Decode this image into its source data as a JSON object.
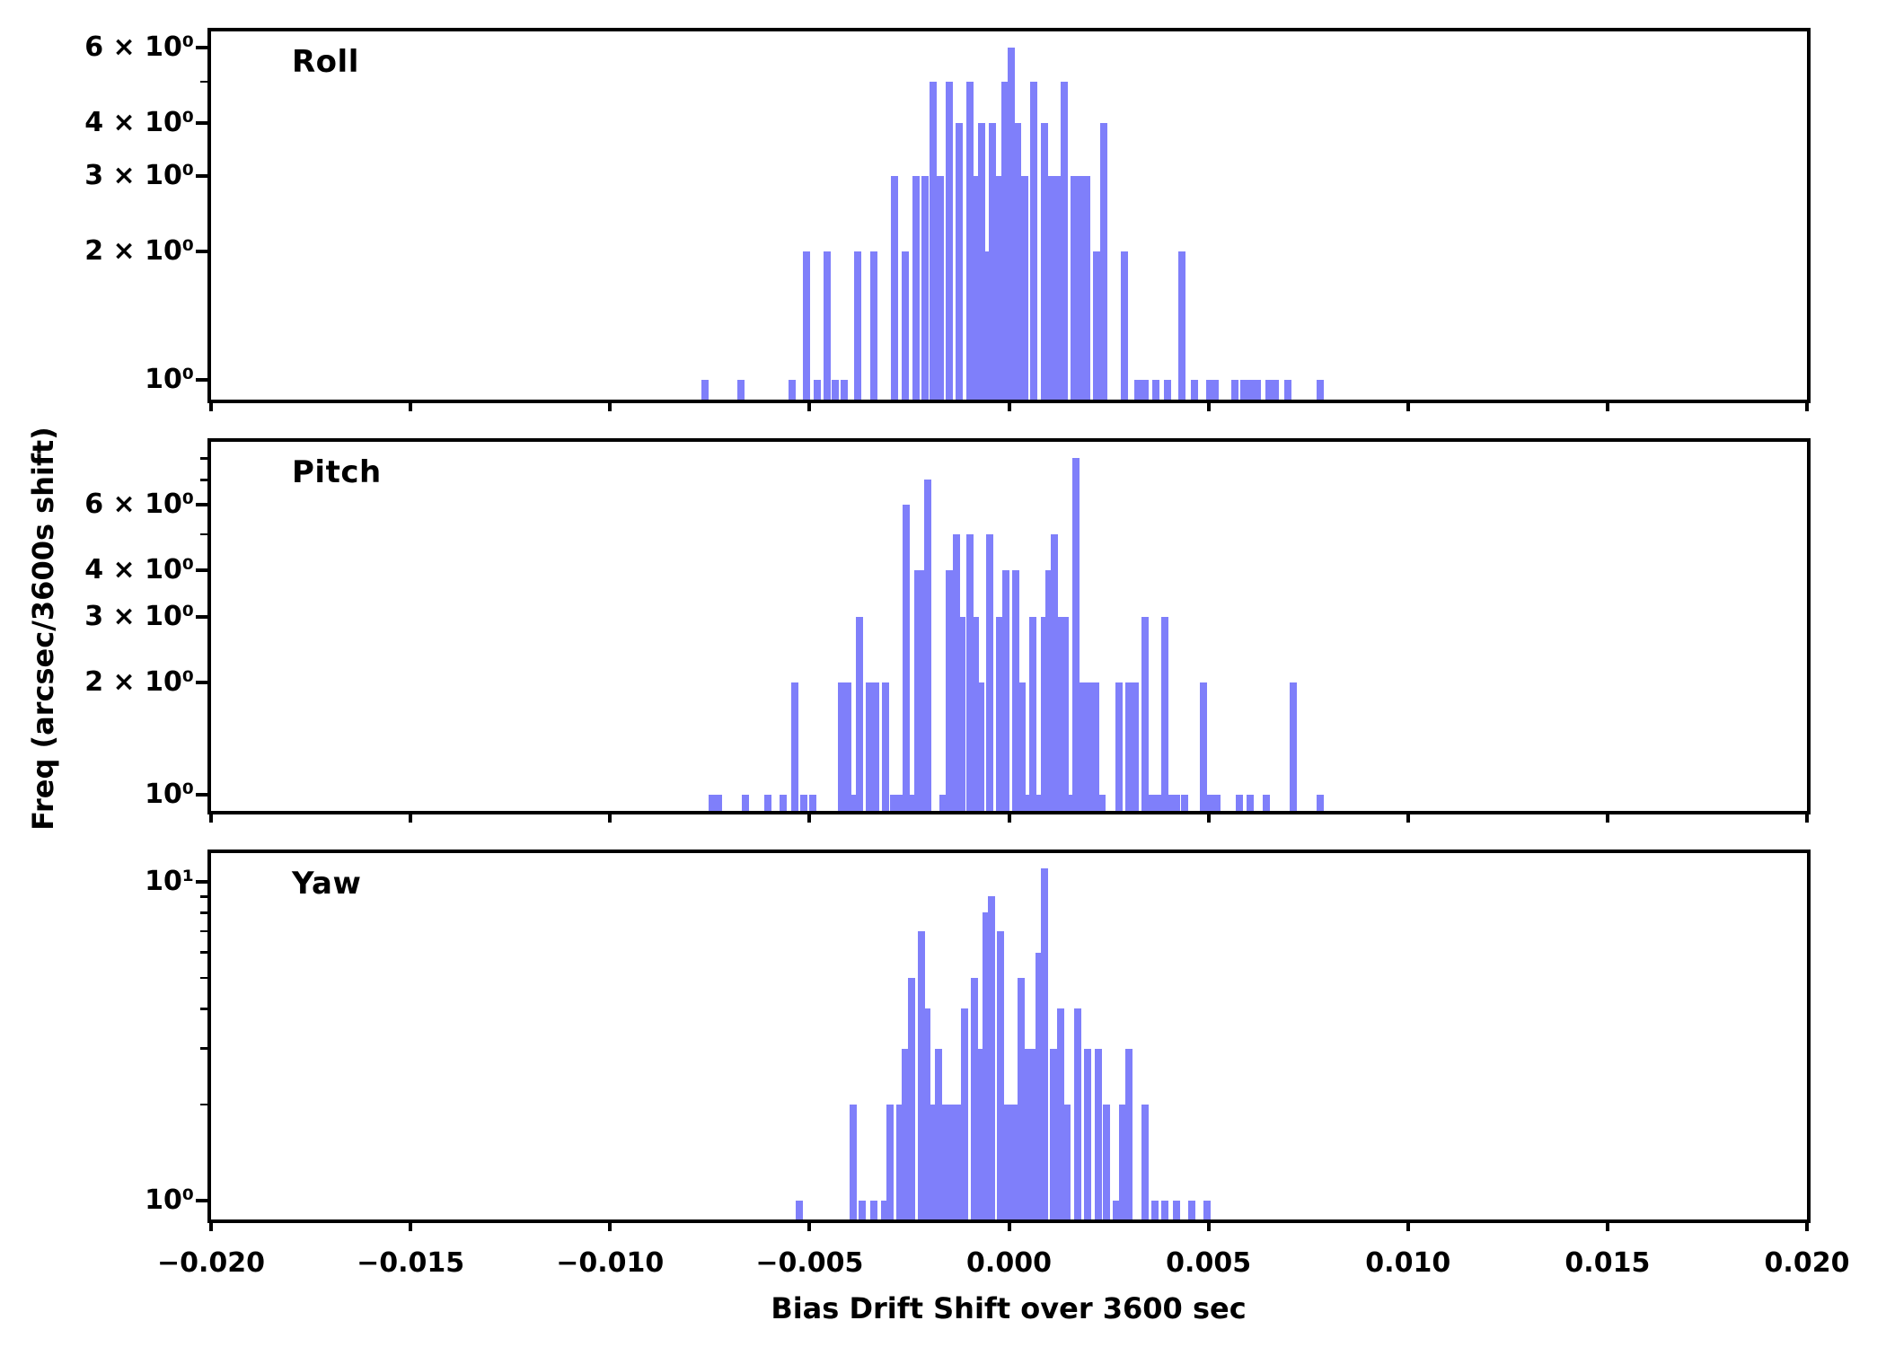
{
  "figure": {
    "xlabel": "Bias Drift Shift over 3600 sec",
    "ylabel": "Freq (arcsec/3600s shift)",
    "bar_color": "#7f7ffa",
    "x_ticks": [
      {
        "value": -0.02,
        "label": "−0.020"
      },
      {
        "value": -0.015,
        "label": "−0.015"
      },
      {
        "value": -0.01,
        "label": "−0.010"
      },
      {
        "value": -0.005,
        "label": "−0.005"
      },
      {
        "value": 0.0,
        "label": "0.000"
      },
      {
        "value": 0.005,
        "label": "0.005"
      },
      {
        "value": 0.01,
        "label": "0.010"
      },
      {
        "value": 0.015,
        "label": "0.015"
      },
      {
        "value": 0.02,
        "label": "0.020"
      }
    ]
  },
  "chart_data": [
    {
      "type": "bar",
      "subtype": "histogram",
      "title": "Roll",
      "yscale": "log",
      "xlim": [
        -0.02,
        0.02
      ],
      "ylim": [
        0.9,
        6.6
      ],
      "bin_width": 0.00018,
      "grid": false,
      "y_ticks_major": [
        {
          "value": 1,
          "label": "10⁰"
        },
        {
          "value": 2,
          "label": "2 × 10⁰"
        },
        {
          "value": 3,
          "label": "3 × 10⁰"
        },
        {
          "value": 4,
          "label": "4 × 10⁰"
        },
        {
          "value": 6,
          "label": "6 × 10⁰"
        }
      ],
      "y_ticks_minor": [
        5
      ],
      "bars": [
        [
          -0.00762,
          1
        ],
        [
          -0.00672,
          1
        ],
        [
          -0.00544,
          1
        ],
        [
          -0.00508,
          2
        ],
        [
          -0.00481,
          1
        ],
        [
          -0.00456,
          2
        ],
        [
          -0.00436,
          1
        ],
        [
          -0.00413,
          1
        ],
        [
          -0.00379,
          2
        ],
        [
          -0.00339,
          2
        ],
        [
          -0.00287,
          3
        ],
        [
          -0.0026,
          2
        ],
        [
          -0.00233,
          3
        ],
        [
          -0.0021,
          3
        ],
        [
          -0.0019,
          5
        ],
        [
          -0.00172,
          3
        ],
        [
          -0.0015,
          5
        ],
        [
          -0.00125,
          4
        ],
        [
          -0.00098,
          5
        ],
        [
          -0.00084,
          3
        ],
        [
          -0.00069,
          4
        ],
        [
          -0.00055,
          2
        ],
        [
          -0.00042,
          4
        ],
        [
          -0.00026,
          3
        ],
        [
          -0.0001,
          5
        ],
        [
          6e-05,
          6
        ],
        [
          0.00021,
          4
        ],
        [
          0.00039,
          3
        ],
        [
          0.00062,
          5
        ],
        [
          0.00089,
          4
        ],
        [
          0.00102,
          3
        ],
        [
          0.0012,
          3
        ],
        [
          0.00138,
          5
        ],
        [
          0.00163,
          3
        ],
        [
          0.00179,
          3
        ],
        [
          0.00195,
          3
        ],
        [
          0.0022,
          2
        ],
        [
          0.00238,
          4
        ],
        [
          0.00289,
          2
        ],
        [
          0.00323,
          1
        ],
        [
          0.00341,
          1
        ],
        [
          0.00368,
          1
        ],
        [
          0.00397,
          1
        ],
        [
          0.00433,
          2
        ],
        [
          0.00465,
          1
        ],
        [
          0.00503,
          1
        ],
        [
          0.00517,
          1
        ],
        [
          0.00566,
          1
        ],
        [
          0.00589,
          1
        ],
        [
          0.00604,
          1
        ],
        [
          0.00622,
          1
        ],
        [
          0.00652,
          1
        ],
        [
          0.00668,
          1
        ],
        [
          0.00699,
          1
        ],
        [
          0.0078,
          1
        ]
      ]
    },
    {
      "type": "bar",
      "subtype": "histogram",
      "title": "Pitch",
      "yscale": "log",
      "xlim": [
        -0.02,
        0.02
      ],
      "ylim": [
        0.9,
        8.9
      ],
      "bin_width": 0.00018,
      "grid": false,
      "y_ticks_major": [
        {
          "value": 1,
          "label": "10⁰"
        },
        {
          "value": 2,
          "label": "2 × 10⁰"
        },
        {
          "value": 3,
          "label": "3 × 10⁰"
        },
        {
          "value": 4,
          "label": "4 × 10⁰"
        },
        {
          "value": 6,
          "label": "6 × 10⁰"
        }
      ],
      "y_ticks_minor": [
        5,
        7,
        8
      ],
      "bars": [
        [
          -0.00744,
          1
        ],
        [
          -0.00728,
          1
        ],
        [
          -0.00661,
          1
        ],
        [
          -0.00604,
          1
        ],
        [
          -0.00566,
          1
        ],
        [
          -0.00537,
          2
        ],
        [
          -0.00514,
          1
        ],
        [
          -0.00492,
          1
        ],
        [
          -0.0042,
          2
        ],
        [
          -0.00404,
          2
        ],
        [
          -0.00388,
          1
        ],
        [
          -0.00375,
          3
        ],
        [
          -0.0035,
          2
        ],
        [
          -0.00334,
          2
        ],
        [
          -0.0031,
          2
        ],
        [
          -0.00289,
          1
        ],
        [
          -0.00274,
          1
        ],
        [
          -0.00258,
          6
        ],
        [
          -0.00242,
          1
        ],
        [
          -0.00229,
          4
        ],
        [
          -0.00215,
          4
        ],
        [
          -0.00204,
          7
        ],
        [
          -0.00165,
          1
        ],
        [
          -0.0015,
          4
        ],
        [
          -0.00132,
          5
        ],
        [
          -0.00118,
          3
        ],
        [
          -0.00098,
          5
        ],
        [
          -0.00084,
          3
        ],
        [
          -0.00071,
          2
        ],
        [
          -0.00048,
          5
        ],
        [
          -0.00024,
          3
        ],
        [
          -8e-05,
          4
        ],
        [
          0.00017,
          4
        ],
        [
          0.00033,
          2
        ],
        [
          0.00046,
          1
        ],
        [
          0.0006,
          3
        ],
        [
          0.00075,
          1
        ],
        [
          0.00089,
          3
        ],
        [
          0.001,
          4
        ],
        [
          0.00114,
          5
        ],
        [
          0.00127,
          3
        ],
        [
          0.00141,
          3
        ],
        [
          0.00154,
          1
        ],
        [
          0.00168,
          8
        ],
        [
          0.00186,
          2
        ],
        [
          0.00201,
          2
        ],
        [
          0.00217,
          2
        ],
        [
          0.00233,
          1
        ],
        [
          0.00276,
          2
        ],
        [
          0.00301,
          2
        ],
        [
          0.00316,
          2
        ],
        [
          0.00341,
          3
        ],
        [
          0.00359,
          1
        ],
        [
          0.00375,
          1
        ],
        [
          0.00391,
          3
        ],
        [
          0.00406,
          1
        ],
        [
          0.0042,
          1
        ],
        [
          0.0044,
          1
        ],
        [
          0.00487,
          2
        ],
        [
          0.00505,
          1
        ],
        [
          0.00521,
          1
        ],
        [
          0.00577,
          1
        ],
        [
          0.00604,
          1
        ],
        [
          0.00645,
          1
        ],
        [
          0.00712,
          2
        ],
        [
          0.0078,
          1
        ]
      ]
    },
    {
      "type": "bar",
      "subtype": "histogram",
      "title": "Yaw",
      "yscale": "log",
      "xlim": [
        -0.02,
        0.02
      ],
      "ylim": [
        0.9,
        12.5
      ],
      "bin_width": 0.00018,
      "grid": false,
      "y_ticks_major": [
        {
          "value": 1,
          "label": "10⁰"
        },
        {
          "value": 10,
          "label": "10¹"
        }
      ],
      "y_ticks_minor": [
        2,
        3,
        4,
        5,
        6,
        7,
        8,
        9
      ],
      "bars": [
        [
          -0.00526,
          1
        ],
        [
          -0.00391,
          2
        ],
        [
          -0.00368,
          1
        ],
        [
          -0.00339,
          1
        ],
        [
          -0.00312,
          1
        ],
        [
          -0.00298,
          2
        ],
        [
          -0.00274,
          2
        ],
        [
          -0.0026,
          3
        ],
        [
          -0.00244,
          5
        ],
        [
          -0.0022,
          7
        ],
        [
          -0.00206,
          4
        ],
        [
          -0.00188,
          2
        ],
        [
          -0.00177,
          3
        ],
        [
          -0.00161,
          2
        ],
        [
          -0.00147,
          2
        ],
        [
          -0.00129,
          2
        ],
        [
          -0.00111,
          4
        ],
        [
          -0.00087,
          5
        ],
        [
          -0.00069,
          3
        ],
        [
          -0.00057,
          8
        ],
        [
          -0.00044,
          9
        ],
        [
          -0.00021,
          7
        ],
        [
          -3e-05,
          2
        ],
        [
          0.00015,
          2
        ],
        [
          0.0003,
          5
        ],
        [
          0.00048,
          3
        ],
        [
          0.00062,
          3
        ],
        [
          0.00075,
          6
        ],
        [
          0.00089,
          11
        ],
        [
          0.00111,
          3
        ],
        [
          0.00129,
          4
        ],
        [
          0.00145,
          2
        ],
        [
          0.00172,
          4
        ],
        [
          0.00197,
          3
        ],
        [
          0.00224,
          3
        ],
        [
          0.00244,
          2
        ],
        [
          0.00269,
          1
        ],
        [
          0.00285,
          2
        ],
        [
          0.00301,
          3
        ],
        [
          0.00341,
          2
        ],
        [
          0.00366,
          1
        ],
        [
          0.00391,
          1
        ],
        [
          0.0042,
          1
        ],
        [
          0.00458,
          1
        ],
        [
          0.00496,
          1
        ]
      ]
    }
  ]
}
